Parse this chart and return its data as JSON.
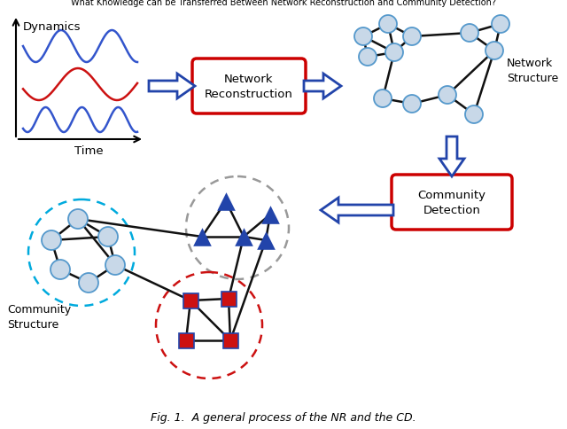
{
  "title": "What Knowledge can be Transferred Between Network Reconstruction and Community Detection?",
  "caption": "Fig. 1.  A general process of the NR and the CD.",
  "background_color": "#ffffff",
  "dynamics_label": "Dynamics",
  "time_label": "Time",
  "wave1_color": "#3355cc",
  "wave2_color": "#cc1111",
  "wave3_color": "#3355cc",
  "nr_box_text": "Network\nReconstruction",
  "nr_box_color": "#cc0000",
  "cd_box_text": "Community\nDetection",
  "cd_box_color": "#cc0000",
  "network_structure_label": "Network\nStructure",
  "community_structure_label": "Community\nStructure",
  "node_color": "#c8d8e8",
  "node_edge_color": "#5599cc",
  "triangle_color": "#2244aa",
  "square_color": "#cc1111",
  "square_edge_color": "#2244aa",
  "circle_cyan_color": "#00aadd",
  "circle_gray_color": "#999999",
  "circle_red_color": "#cc1111",
  "arrow_color": "#2244aa",
  "edge_color": "#111111"
}
